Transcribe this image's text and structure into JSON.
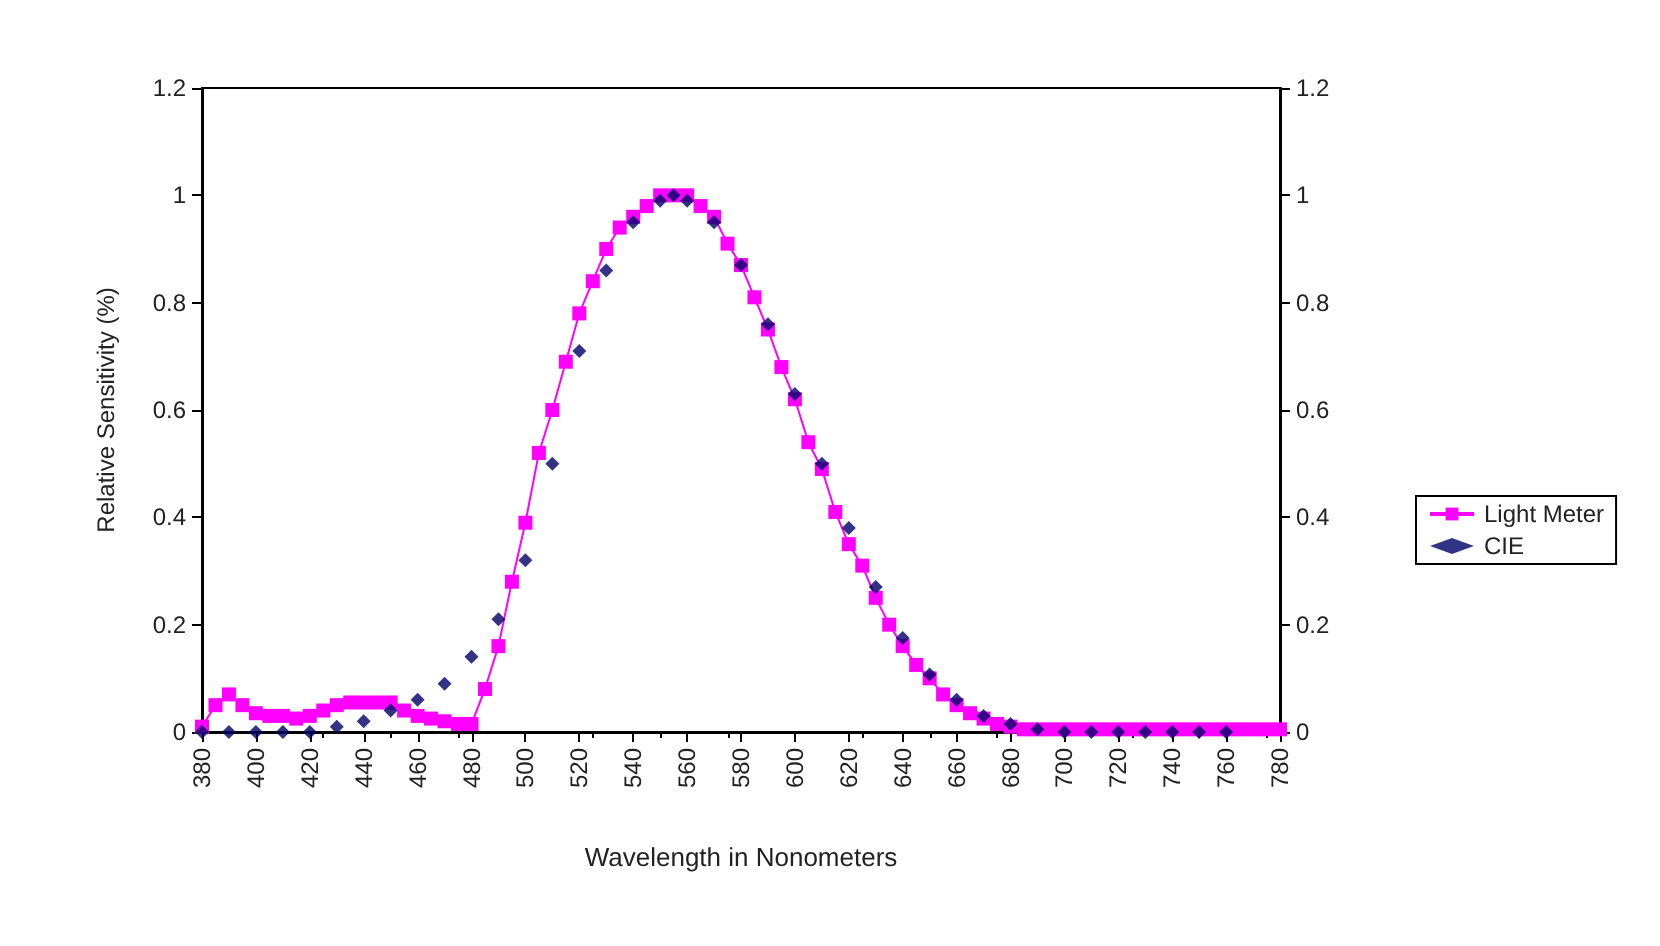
{
  "chart_data": {
    "type": "line",
    "xlabel": "Wavelength in Nonometers",
    "ylabel": "Relative Sensitivity (%)",
    "xlim": [
      380,
      780
    ],
    "xticks": [
      380,
      400,
      420,
      440,
      460,
      480,
      500,
      520,
      540,
      560,
      580,
      600,
      620,
      640,
      660,
      680,
      700,
      720,
      740,
      760,
      780
    ],
    "ylim": [
      0,
      1.2
    ],
    "yticks": [
      0,
      0.2,
      0.4,
      0.6,
      0.8,
      1,
      1.2
    ],
    "y2lim": [
      0,
      1.2
    ],
    "y2ticks": [
      0,
      0.2,
      0.4,
      0.6,
      0.8,
      1,
      1.2
    ],
    "legend": "right",
    "grid": false,
    "series": [
      {
        "name": "Light Meter",
        "marker": "square",
        "color": "#ff00ff",
        "x": [
          380,
          385,
          390,
          395,
          400,
          405,
          410,
          415,
          420,
          425,
          430,
          435,
          440,
          445,
          450,
          455,
          460,
          465,
          470,
          475,
          480,
          485,
          490,
          495,
          500,
          505,
          510,
          515,
          520,
          525,
          530,
          535,
          540,
          545,
          550,
          555,
          560,
          565,
          570,
          575,
          580,
          585,
          590,
          595,
          600,
          605,
          610,
          615,
          620,
          625,
          630,
          635,
          640,
          645,
          650,
          655,
          660,
          665,
          670,
          675,
          680,
          685,
          690,
          695,
          700,
          705,
          710,
          715,
          720,
          725,
          730,
          735,
          740,
          745,
          750,
          755,
          760,
          765,
          770,
          775,
          780
        ],
        "values": [
          0.01,
          0.05,
          0.07,
          0.05,
          0.035,
          0.03,
          0.03,
          0.025,
          0.03,
          0.04,
          0.05,
          0.055,
          0.055,
          0.055,
          0.055,
          0.04,
          0.03,
          0.025,
          0.02,
          0.015,
          0.015,
          0.08,
          0.16,
          0.28,
          0.39,
          0.52,
          0.6,
          0.69,
          0.78,
          0.84,
          0.9,
          0.94,
          0.96,
          0.98,
          1.0,
          1.0,
          1.0,
          0.98,
          0.96,
          0.91,
          0.87,
          0.81,
          0.75,
          0.68,
          0.62,
          0.54,
          0.49,
          0.41,
          0.35,
          0.31,
          0.25,
          0.2,
          0.16,
          0.125,
          0.1,
          0.07,
          0.05,
          0.035,
          0.025,
          0.015,
          0.01,
          0.005,
          0.005,
          0.005,
          0.005,
          0.005,
          0.005,
          0.005,
          0.005,
          0.005,
          0.005,
          0.005,
          0.005,
          0.005,
          0.005,
          0.005,
          0.005,
          0.005,
          0.005,
          0.005,
          0.005
        ]
      },
      {
        "name": "CIE",
        "type": "scatter",
        "marker": "diamond",
        "color": "#000066",
        "x": [
          380,
          390,
          400,
          410,
          420,
          430,
          440,
          450,
          460,
          470,
          480,
          490,
          500,
          510,
          520,
          530,
          540,
          550,
          555,
          560,
          570,
          580,
          590,
          600,
          610,
          620,
          630,
          640,
          650,
          660,
          670,
          680,
          690,
          700,
          710,
          720,
          730,
          740,
          750,
          760
        ],
        "values": [
          0,
          0,
          0,
          0,
          0,
          0.01,
          0.02,
          0.04,
          0.06,
          0.09,
          0.14,
          0.21,
          0.32,
          0.5,
          0.71,
          0.86,
          0.95,
          0.99,
          1.0,
          0.99,
          0.95,
          0.87,
          0.76,
          0.63,
          0.5,
          0.38,
          0.27,
          0.175,
          0.107,
          0.06,
          0.03,
          0.015,
          0.005,
          0,
          0,
          0,
          0,
          0,
          0,
          0
        ]
      }
    ]
  }
}
